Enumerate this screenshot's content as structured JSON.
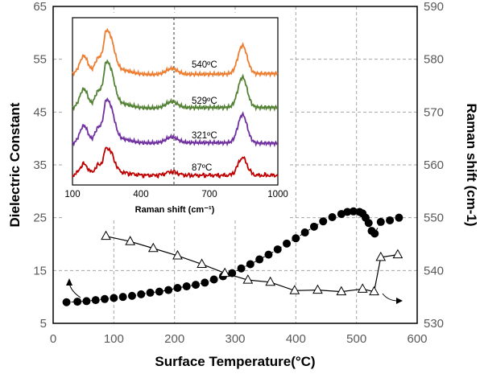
{
  "chart_data": [
    {
      "type": "scatter",
      "xlabel": "Surface Temperature(°C)",
      "ylabel": "Dielectric Constant",
      "y2label": "Raman shift (cm-1)",
      "xlim": [
        0,
        600
      ],
      "ylim": [
        5,
        65
      ],
      "y2lim": [
        530,
        590
      ],
      "xticks": [
        "0",
        "100",
        "200",
        "300",
        "400",
        "500",
        "600"
      ],
      "yticks": [
        "5",
        "15",
        "25",
        "35",
        "45",
        "55",
        "65"
      ],
      "y2ticks": [
        "530",
        "540",
        "550",
        "560",
        "570",
        "580",
        "590"
      ],
      "grid": true,
      "series": [
        {
          "axis": "left",
          "marker": "filled-circle",
          "line": "dashed",
          "x": [
            22,
            40,
            55,
            70,
            85,
            100,
            115,
            130,
            145,
            160,
            175,
            190,
            205,
            220,
            235,
            250,
            265,
            280,
            295,
            310,
            325,
            340,
            355,
            370,
            385,
            400,
            415,
            430,
            445,
            460,
            475,
            485,
            495,
            505,
            510,
            515,
            520,
            525,
            530,
            540,
            555,
            570
          ],
          "values": [
            9,
            9.1,
            9.2,
            9.4,
            9.6,
            9.8,
            10.0,
            10.2,
            10.5,
            10.8,
            11.0,
            11.3,
            11.7,
            12.0,
            12.3,
            12.7,
            13.3,
            13.9,
            14.5,
            15.4,
            16.2,
            17.1,
            18.0,
            19.0,
            20.1,
            21.1,
            22.2,
            23.3,
            24.3,
            25.1,
            25.7,
            26.1,
            26.2,
            26.1,
            25.8,
            25.0,
            24.0,
            22.5,
            22.0,
            24.2,
            24.5,
            25.0
          ]
        },
        {
          "axis": "right",
          "marker": "open-triangle",
          "line": "solid",
          "x": [
            87,
            127,
            165,
            205,
            245,
            283,
            321,
            358,
            398,
            436,
            475,
            510,
            529,
            540,
            568
          ],
          "values": [
            546.5,
            545.5,
            544.2,
            542.8,
            541.2,
            539.5,
            538.2,
            537.8,
            536.2,
            536.3,
            536.0,
            536.5,
            536.0,
            542.5,
            543.0
          ]
        }
      ]
    },
    {
      "type": "line",
      "xlabel": "Raman shift (cm⁻¹)",
      "xlim": [
        100,
        1000
      ],
      "xticks": [
        "100",
        "400",
        "700",
        "1000"
      ],
      "series": [
        {
          "name": "540ºC",
          "color": "#ed7d31"
        },
        {
          "name": "529ºC",
          "color": "#548235"
        },
        {
          "name": "321ºC",
          "color": "#7030a0"
        },
        {
          "name": "87ºC",
          "color": "#c00000"
        }
      ]
    }
  ]
}
